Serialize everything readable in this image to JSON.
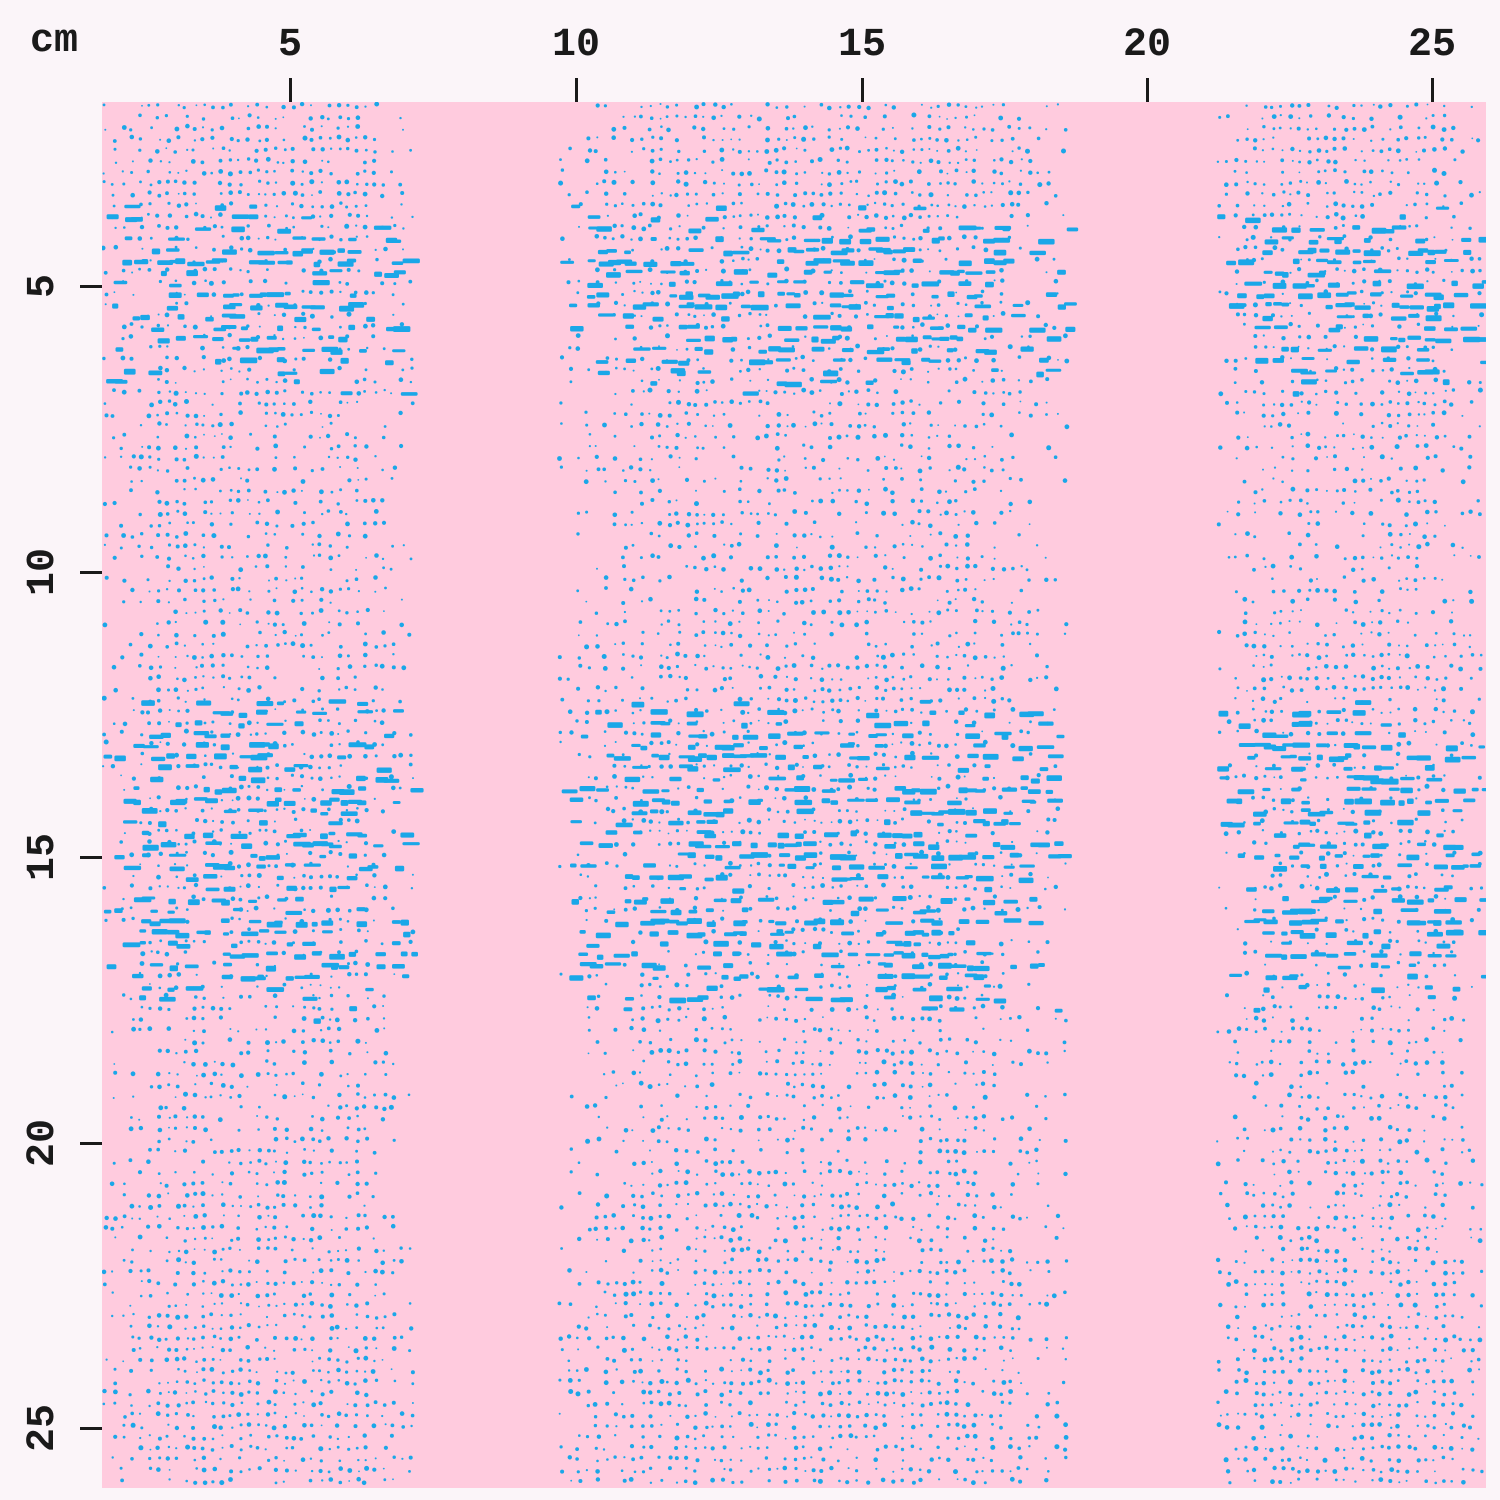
{
  "ruler": {
    "unit": "cm",
    "top_ticks": [
      "5",
      "10",
      "15",
      "20",
      "25"
    ],
    "left_ticks": [
      "5",
      "10",
      "15",
      "20",
      "25"
    ],
    "tick_values": [
      5,
      10,
      15,
      20,
      25
    ]
  },
  "fabric": {
    "background_color": "#ffcbde",
    "print_color": "#1aa7e8",
    "pattern": "vertical-dotted-stripes"
  }
}
